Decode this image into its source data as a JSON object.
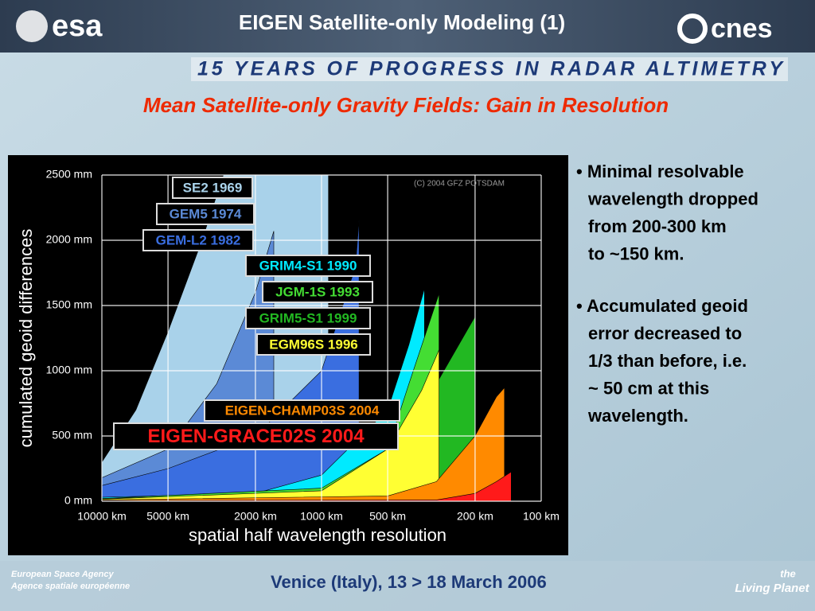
{
  "header": {
    "title": "EIGEN Satellite-only Modeling (1)",
    "left_logo": "esa",
    "right_logo": "cnes",
    "banner": "15 YEARS OF PROGRESS IN RADAR ALTIMETRY",
    "subtitle": "Mean Satellite-only Gravity Fields: Gain in Resolution"
  },
  "chart_data": {
    "type": "area",
    "annotation": "(C) 2004 GFZ POTSDAM",
    "xlabel": "spatial half wavelength resolution",
    "ylabel": "cumulated geoid differences",
    "xscale": "log",
    "xlim": [
      10000,
      100
    ],
    "xticks": [
      {
        "value": 10000,
        "label": "10000 km"
      },
      {
        "value": 5000,
        "label": "5000 km"
      },
      {
        "value": 2000,
        "label": "2000 km"
      },
      {
        "value": 1000,
        "label": "1000 km"
      },
      {
        "value": 500,
        "label": "500 km"
      },
      {
        "value": 200,
        "label": "200 km"
      },
      {
        "value": 100,
        "label": "100 km"
      }
    ],
    "ylim": [
      0,
      2500
    ],
    "yticks": [
      {
        "value": 0,
        "label": "0 mm"
      },
      {
        "value": 500,
        "label": "500 mm"
      },
      {
        "value": 1000,
        "label": "1000 mm"
      },
      {
        "value": 1500,
        "label": "1500 mm"
      },
      {
        "value": 2000,
        "label": "2000 mm"
      },
      {
        "value": 2500,
        "label": "2500 mm"
      }
    ],
    "grid": true,
    "series": [
      {
        "name": "SE2 1969",
        "color": "#a9d2ea",
        "x": [
          10000,
          7000,
          5000,
          3500,
          2800,
          930,
          930
        ],
        "values": [
          300,
          700,
          1300,
          2000,
          2500,
          2500,
          0
        ]
      },
      {
        "name": "GEM5 1974",
        "color": "#5b8ad6",
        "x": [
          10000,
          5000,
          3000,
          2000,
          1650,
          1650
        ],
        "values": [
          180,
          400,
          900,
          1600,
          2070,
          0
        ]
      },
      {
        "name": "GEM-L2 1982",
        "color": "#3a6ee0",
        "x": [
          10000,
          5000,
          2000,
          1000,
          700,
          675,
          675
        ],
        "values": [
          120,
          250,
          500,
          1000,
          1800,
          2160,
          0
        ]
      },
      {
        "name": "GRIM4-S1 1990",
        "color": "#00eaff",
        "x": [
          10000,
          2000,
          1000,
          500,
          400,
          340,
          340
        ],
        "values": [
          30,
          60,
          200,
          700,
          1200,
          1630,
          0
        ]
      },
      {
        "name": "JGM-1S 1993",
        "color": "#44dd33",
        "x": [
          10000,
          1000,
          500,
          400,
          292,
          292
        ],
        "values": [
          20,
          100,
          400,
          900,
          1590,
          0
        ]
      },
      {
        "name": "GRIM5-S1 1999",
        "color": "#22b822",
        "x": [
          10000,
          1000,
          500,
          300,
          200,
          200
        ],
        "values": [
          20,
          60,
          200,
          900,
          1415,
          0
        ]
      },
      {
        "name": "EGM96S 1996",
        "color": "#ffff33",
        "x": [
          10000,
          1000,
          500,
          350,
          292,
          292
        ],
        "values": [
          15,
          80,
          400,
          850,
          1160,
          0
        ]
      },
      {
        "name": "EIGEN-CHAMP03S 2004",
        "color": "#ff8a00",
        "x": [
          10000,
          500,
          300,
          200,
          160,
          147,
          147
        ],
        "values": [
          10,
          40,
          150,
          500,
          800,
          870,
          0
        ]
      },
      {
        "name": "EIGEN-GRACE02S 2004",
        "color": "#ff1a1a",
        "x": [
          10000,
          300,
          200,
          160,
          137,
          137
        ],
        "values": [
          5,
          10,
          60,
          150,
          225,
          0
        ]
      }
    ]
  },
  "bullets": [
    [
      "• Minimal resolvable",
      "wavelength dropped",
      "from 200-300 km",
      "to ~150 km."
    ],
    [
      "• Accumulated geoid",
      "error decreased to",
      "1/3 than before, i.e.",
      "~ 50 cm at this",
      "wavelength."
    ]
  ],
  "footer": {
    "agency_en": "European Space Agency",
    "agency_fr": "Agence spatiale européenne",
    "venue": "Venice (Italy), 13 > 18 March 2006",
    "brand_top": "the",
    "brand": "Living Planet"
  }
}
